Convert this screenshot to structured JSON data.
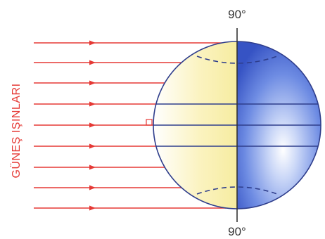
{
  "labels": {
    "top_pole": "90°",
    "bottom_pole": "90°",
    "sun_rays": "GÜNEŞ IŞINLARI"
  },
  "colors": {
    "ray": "#e53935",
    "day_side": "#fbf3b8",
    "night_side": "#3b5fcf",
    "globe_outline": "#2f3e8c",
    "label": "#e53935",
    "pole_text": "#333333"
  }
}
